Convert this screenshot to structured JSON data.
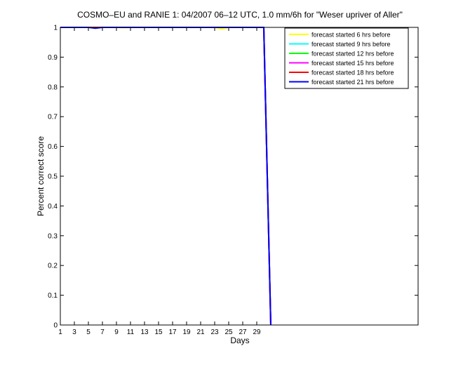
{
  "chart_data": {
    "type": "line",
    "title": "COSMO–EU and RANIE 1: 04/2007 06–12 UTC, 1.0 mm/6h for \"Weser upriver of Aller\"",
    "xlabel": "Days",
    "ylabel": "Percent correct score",
    "x": [
      1,
      2,
      3,
      4,
      5,
      6,
      7,
      8,
      9,
      10,
      11,
      12,
      13,
      14,
      15,
      16,
      17,
      18,
      19,
      20,
      21,
      22,
      23,
      24,
      25,
      26,
      27,
      28,
      29,
      30,
      31
    ],
    "xlim": [
      1,
      52
    ],
    "xticks": [
      1,
      3,
      5,
      7,
      9,
      11,
      13,
      15,
      17,
      19,
      21,
      23,
      25,
      27,
      29
    ],
    "ylim": [
      0,
      1
    ],
    "yticks": [
      0,
      0.1,
      0.2,
      0.3,
      0.4,
      0.5,
      0.6,
      0.7,
      0.8,
      0.9,
      1
    ],
    "legend": "upper right",
    "series": [
      {
        "name": "forecast started 6 hrs before",
        "color": "#ffff00",
        "values": [
          1,
          1,
          1,
          1,
          1,
          1,
          1,
          1,
          1,
          0.999,
          1,
          1,
          1,
          1,
          1,
          1,
          1,
          1,
          1,
          1,
          1,
          1,
          1,
          0.995,
          1,
          1,
          1,
          1,
          1,
          1,
          0
        ]
      },
      {
        "name": "forecast started 9 hrs before",
        "color": "#00ffff",
        "values": [
          1,
          1,
          1,
          1,
          1,
          1,
          1,
          1,
          1,
          1,
          1,
          1,
          1,
          1,
          1,
          1,
          1,
          1,
          1,
          1,
          1,
          1,
          1,
          1,
          1,
          1,
          1,
          1,
          1,
          1,
          0
        ]
      },
      {
        "name": "forecast started 12 hrs before",
        "color": "#00ff00",
        "values": [
          1,
          1,
          1,
          1,
          1,
          1,
          1,
          1,
          1,
          1,
          1,
          1,
          1,
          1,
          1,
          1,
          1,
          1,
          1,
          1,
          1,
          1,
          1,
          1,
          1,
          1,
          1,
          1,
          1,
          1,
          0
        ]
      },
      {
        "name": "forecast started 15 hrs before",
        "color": "#ff00ff",
        "values": [
          1,
          1,
          1,
          1,
          1,
          1,
          1,
          1,
          1,
          1,
          1,
          1,
          1,
          1,
          1,
          1,
          1,
          1,
          1,
          1,
          1,
          1,
          1,
          1,
          1,
          1,
          1,
          1,
          1,
          1,
          0
        ]
      },
      {
        "name": "forecast started 18 hrs before",
        "color": "#ff0000",
        "values": [
          1,
          1,
          1,
          1,
          1,
          1,
          1,
          1,
          1,
          1,
          1,
          1,
          1,
          1,
          1,
          1,
          1,
          1,
          1,
          1,
          1,
          1,
          1,
          1,
          1,
          1,
          1,
          1,
          1,
          1,
          0
        ]
      },
      {
        "name": "forecast started 21 hrs before",
        "color": "#0000ff",
        "values": [
          1,
          1,
          1,
          1,
          1,
          0.997,
          1,
          1,
          1,
          1,
          1,
          1,
          1,
          1,
          1,
          1,
          1,
          1,
          1,
          1,
          1,
          1,
          1,
          1,
          1,
          1,
          1,
          1,
          1,
          1,
          0
        ]
      }
    ]
  }
}
